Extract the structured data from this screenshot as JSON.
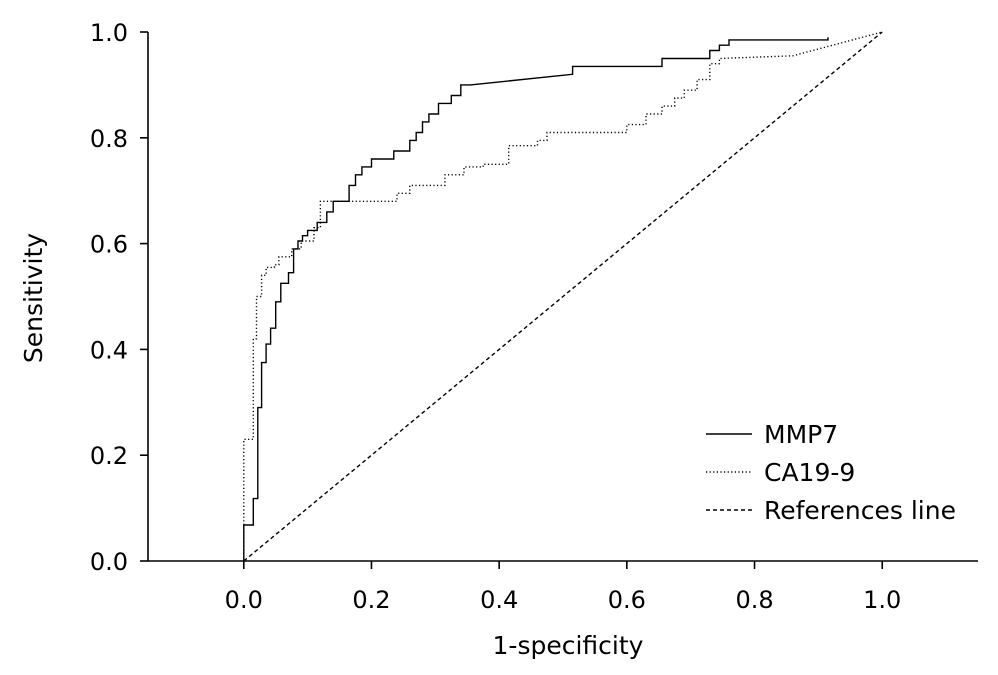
{
  "chart_data": {
    "type": "line",
    "title": "",
    "xlabel": "1-specificity",
    "ylabel": "Sensitivity",
    "xlim": [
      -0.15,
      1.15
    ],
    "ylim": [
      0,
      1
    ],
    "xticks": [
      "0.0",
      "0.2",
      "0.4",
      "0.6",
      "0.8",
      "1.0"
    ],
    "yticks": [
      "0.0",
      "0.2",
      "0.4",
      "0.6",
      "0.8",
      "1.0"
    ],
    "grid": false,
    "legend_position": "bottom-right",
    "series": [
      {
        "name": "MMP7",
        "style": "solid",
        "color": "#000000",
        "x": [
          0.0,
          0.0,
          0.0,
          0.015,
          0.015,
          0.022,
          0.022,
          0.028,
          0.028,
          0.035,
          0.035,
          0.042,
          0.042,
          0.05,
          0.05,
          0.058,
          0.058,
          0.07,
          0.07,
          0.078,
          0.078,
          0.085,
          0.085,
          0.092,
          0.092,
          0.1,
          0.1,
          0.115,
          0.115,
          0.13,
          0.13,
          0.14,
          0.14,
          0.165,
          0.165,
          0.175,
          0.175,
          0.185,
          0.185,
          0.2,
          0.2,
          0.235,
          0.235,
          0.26,
          0.26,
          0.27,
          0.27,
          0.28,
          0.28,
          0.29,
          0.29,
          0.305,
          0.305,
          0.325,
          0.325,
          0.34,
          0.34,
          0.355,
          0.355,
          0.515,
          0.515,
          0.52,
          0.52,
          0.655,
          0.655,
          0.73,
          0.73,
          0.745,
          0.745,
          0.76,
          0.76,
          0.915,
          0.915
        ],
        "y": [
          0.0,
          0.03,
          0.068,
          0.068,
          0.118,
          0.118,
          0.29,
          0.29,
          0.375,
          0.375,
          0.41,
          0.41,
          0.44,
          0.44,
          0.49,
          0.49,
          0.525,
          0.525,
          0.545,
          0.545,
          0.59,
          0.59,
          0.605,
          0.605,
          0.615,
          0.615,
          0.625,
          0.625,
          0.64,
          0.64,
          0.66,
          0.66,
          0.68,
          0.68,
          0.71,
          0.71,
          0.73,
          0.73,
          0.745,
          0.745,
          0.76,
          0.76,
          0.775,
          0.775,
          0.795,
          0.795,
          0.81,
          0.81,
          0.83,
          0.83,
          0.845,
          0.845,
          0.865,
          0.865,
          0.88,
          0.88,
          0.9,
          0.9,
          0.9,
          0.92,
          0.935,
          0.935,
          0.935,
          0.935,
          0.95,
          0.95,
          0.965,
          0.965,
          0.975,
          0.975,
          0.985,
          0.985,
          0.99
        ]
      },
      {
        "name": "CA19-9",
        "style": "dotted",
        "color": "#000000",
        "x": [
          0.0,
          0.0,
          0.0,
          0.015,
          0.015,
          0.02,
          0.02,
          0.028,
          0.028,
          0.035,
          0.035,
          0.048,
          0.048,
          0.055,
          0.055,
          0.075,
          0.075,
          0.09,
          0.09,
          0.11,
          0.11,
          0.12,
          0.12,
          0.135,
          0.135,
          0.24,
          0.24,
          0.26,
          0.26,
          0.315,
          0.315,
          0.345,
          0.345,
          0.375,
          0.375,
          0.415,
          0.415,
          0.46,
          0.46,
          0.475,
          0.475,
          0.6,
          0.6,
          0.63,
          0.63,
          0.655,
          0.655,
          0.675,
          0.675,
          0.69,
          0.69,
          0.71,
          0.71,
          0.73,
          0.73,
          0.745,
          0.745,
          0.86,
          1.0
        ],
        "y": [
          0.0,
          0.068,
          0.23,
          0.23,
          0.42,
          0.42,
          0.5,
          0.5,
          0.54,
          0.54,
          0.555,
          0.555,
          0.56,
          0.56,
          0.575,
          0.575,
          0.59,
          0.59,
          0.605,
          0.605,
          0.63,
          0.63,
          0.68,
          0.68,
          0.68,
          0.68,
          0.695,
          0.695,
          0.71,
          0.71,
          0.73,
          0.73,
          0.745,
          0.745,
          0.75,
          0.75,
          0.785,
          0.785,
          0.795,
          0.795,
          0.81,
          0.81,
          0.825,
          0.825,
          0.845,
          0.845,
          0.86,
          0.86,
          0.875,
          0.875,
          0.89,
          0.89,
          0.91,
          0.91,
          0.94,
          0.94,
          0.95,
          0.955,
          1.0
        ]
      },
      {
        "name": "References line",
        "style": "dashed",
        "color": "#000000",
        "x": [
          0.0,
          1.0
        ],
        "y": [
          0.0,
          1.0
        ]
      }
    ]
  }
}
